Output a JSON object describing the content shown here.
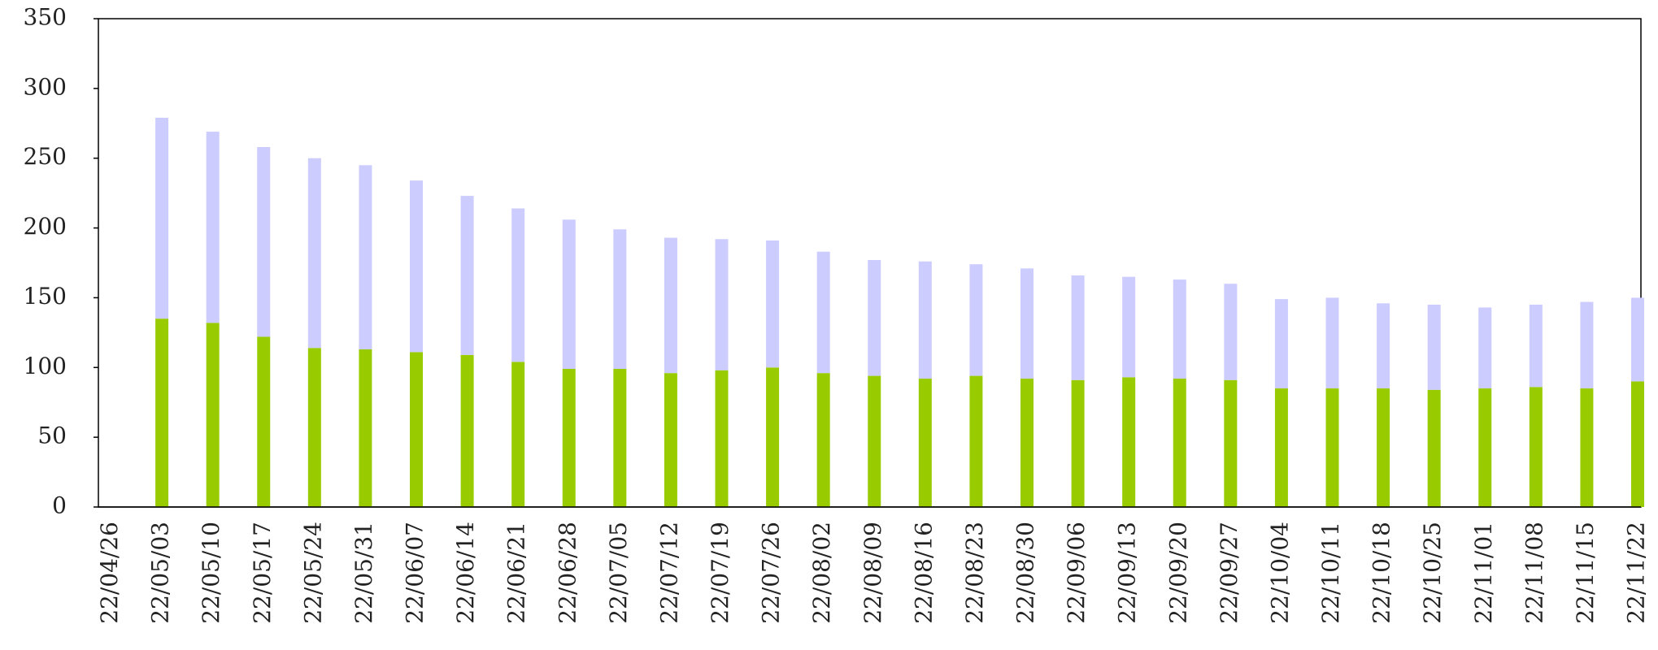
{
  "chart_data": {
    "type": "stacked_bar",
    "categories": [
      "22/04/26",
      "22/05/03",
      "22/05/10",
      "22/05/17",
      "22/05/24",
      "22/05/31",
      "22/06/07",
      "22/06/14",
      "22/06/21",
      "22/06/28",
      "22/07/05",
      "22/07/12",
      "22/07/19",
      "22/07/26",
      "22/08/02",
      "22/08/09",
      "22/08/16",
      "22/08/23",
      "22/08/30",
      "22/09/06",
      "22/09/13",
      "22/09/20",
      "22/09/27",
      "22/10/04",
      "22/10/11",
      "22/10/18",
      "22/10/25",
      "22/11/01",
      "22/11/08",
      "22/11/15",
      "22/11/22"
    ],
    "series": [
      {
        "color": "#99cc00",
        "values": [
          null,
          135,
          132,
          122,
          114,
          113,
          111,
          109,
          104,
          99,
          99,
          96,
          98,
          100,
          96,
          94,
          92,
          94,
          92,
          91,
          93,
          92,
          91,
          85,
          85,
          85,
          84,
          85,
          86,
          85,
          90
        ]
      },
      {
        "color": "#ccccff",
        "values": [
          null,
          144,
          137,
          136,
          136,
          132,
          123,
          114,
          110,
          107,
          100,
          97,
          94,
          91,
          87,
          83,
          84,
          80,
          79,
          75,
          72,
          71,
          69,
          64,
          65,
          61,
          61,
          58,
          59,
          62,
          60
        ]
      }
    ],
    "ylim": [
      0,
      350
    ],
    "yticks": [
      0,
      50,
      100,
      150,
      200,
      250,
      300,
      350
    ],
    "grid": false
  }
}
